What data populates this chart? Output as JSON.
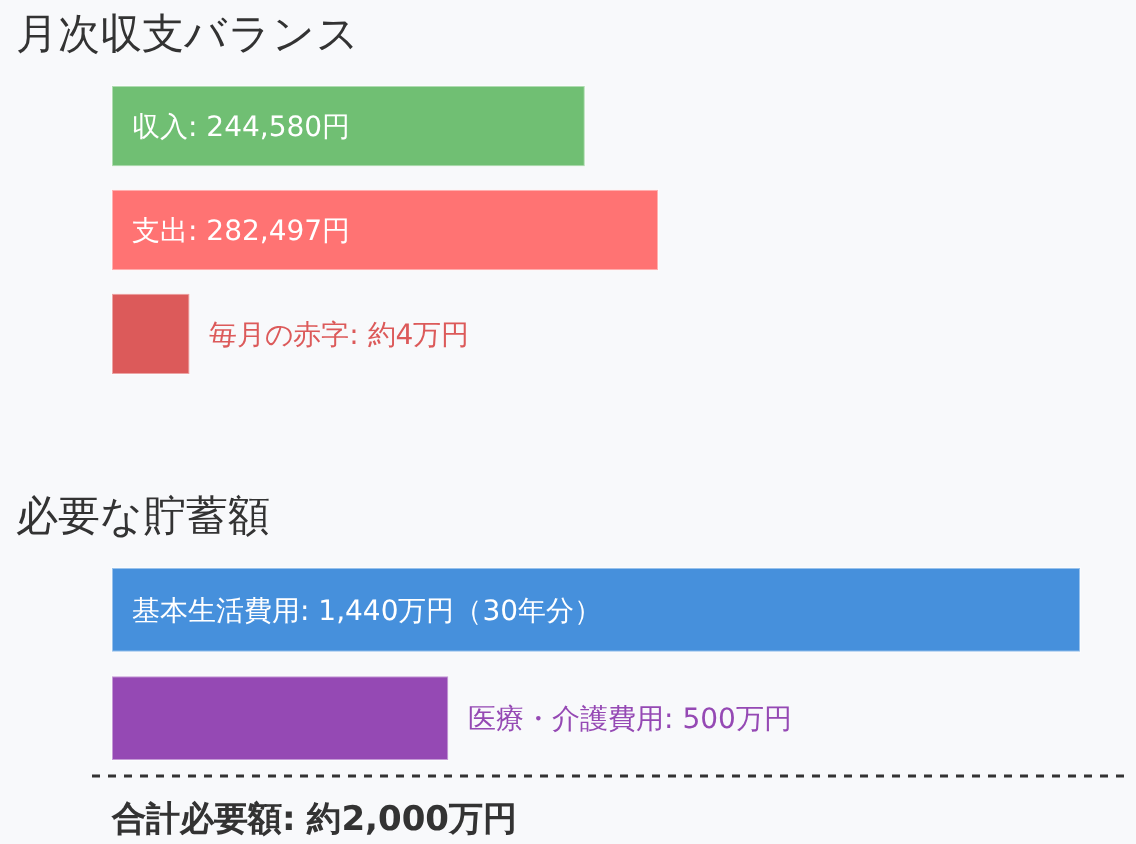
{
  "chart_data": [
    {
      "type": "bar",
      "orientation": "horizontal",
      "title": "月次収支バランス",
      "categories": [
        null,
        null,
        null
      ],
      "values": [
        244580,
        282497,
        40000
      ],
      "colors": [
        "#70bf73",
        "#ff7373",
        "#dc5a5a"
      ],
      "value_labels": [
        "収入: 244,580円",
        "支出: 282,497円",
        "毎月の赤字: 約4万円"
      ]
    },
    {
      "type": "bar",
      "orientation": "horizontal",
      "title": "必要な貯蓄額",
      "categories": [
        null,
        null
      ],
      "values": [
        1440,
        500
      ],
      "colors": [
        "#4690dc",
        "#9549b4"
      ],
      "value_labels": [
        "基本生活費用: 1,440万円（30年分）",
        "医療・介護費用: 500万円"
      ],
      "annotations": [
        "合計必要額: 約2,000万円"
      ]
    }
  ]
}
